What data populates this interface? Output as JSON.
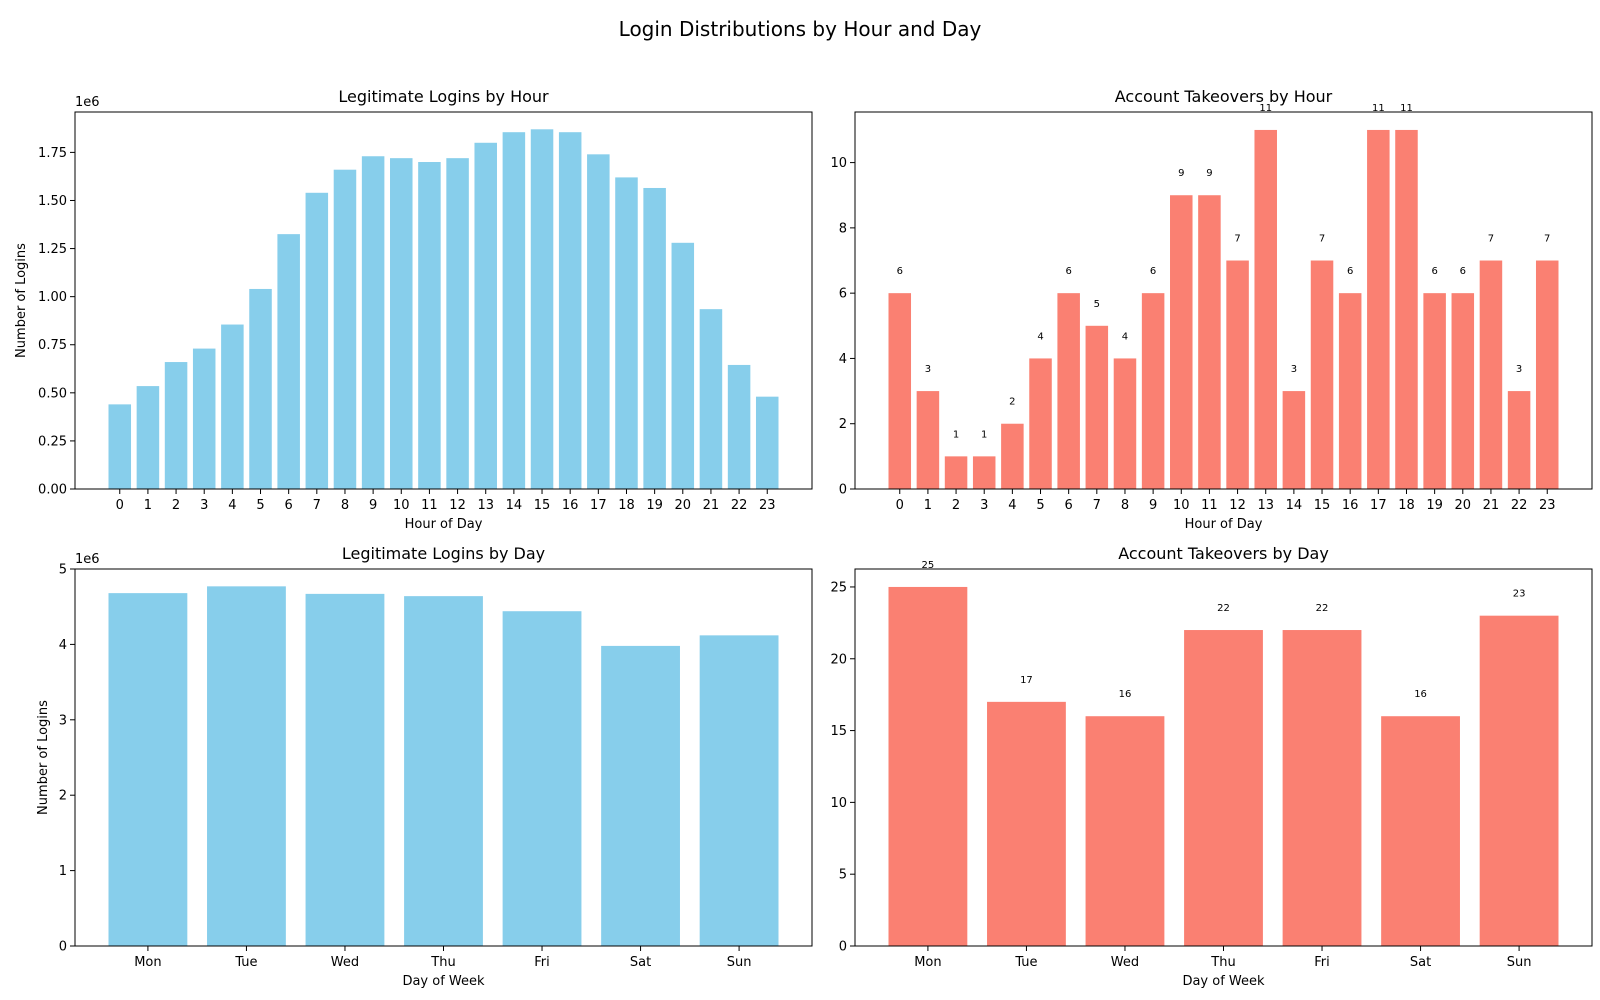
{
  "figure": {
    "title": "Login Distributions by Hour and Day"
  },
  "colors": {
    "legit": "#87ceeb",
    "takeover": "#fa8072"
  },
  "chart_data": [
    {
      "id": "legit-hour",
      "type": "bar",
      "title": "Legitimate Logins by Hour",
      "xlabel": "Hour of Day",
      "ylabel": "Number of Logins",
      "y_offset_label": "1e6",
      "ylim": [
        0,
        1.96
      ],
      "yticks": [
        0,
        0.25,
        0.5,
        0.75,
        1.0,
        1.25,
        1.5,
        1.75
      ],
      "ytick_labels": [
        "0.00",
        "0.25",
        "0.50",
        "0.75",
        "1.00",
        "1.25",
        "1.50",
        "1.75"
      ],
      "categories": [
        "0",
        "1",
        "2",
        "3",
        "4",
        "5",
        "6",
        "7",
        "8",
        "9",
        "10",
        "11",
        "12",
        "13",
        "14",
        "15",
        "16",
        "17",
        "18",
        "19",
        "20",
        "21",
        "22",
        "23"
      ],
      "values": [
        0.44,
        0.535,
        0.66,
        0.73,
        0.855,
        1.04,
        1.325,
        1.54,
        1.66,
        1.73,
        1.72,
        1.7,
        1.72,
        1.8,
        1.855,
        1.87,
        1.855,
        1.74,
        1.62,
        1.565,
        1.28,
        0.935,
        0.645,
        0.48
      ],
      "color_key": "legit",
      "grid": false,
      "show_data_labels": false
    },
    {
      "id": "takeover-hour",
      "type": "bar",
      "title": "Account Takeovers by Hour",
      "xlabel": "Hour of Day",
      "ylabel": "",
      "y_offset_label": "",
      "ylim": [
        0,
        11.55
      ],
      "yticks": [
        0,
        2,
        4,
        6,
        8,
        10
      ],
      "ytick_labels": [
        "0",
        "2",
        "4",
        "6",
        "8",
        "10"
      ],
      "categories": [
        "0",
        "1",
        "2",
        "3",
        "4",
        "5",
        "6",
        "7",
        "8",
        "9",
        "10",
        "11",
        "12",
        "13",
        "14",
        "15",
        "16",
        "17",
        "18",
        "19",
        "20",
        "21",
        "22",
        "23"
      ],
      "values": [
        6,
        3,
        1,
        1,
        2,
        4,
        6,
        5,
        4,
        6,
        9,
        9,
        7,
        11,
        3,
        7,
        6,
        11,
        11,
        6,
        6,
        7,
        3,
        7
      ],
      "color_key": "takeover",
      "grid": false,
      "show_data_labels": true
    },
    {
      "id": "legit-day",
      "type": "bar",
      "title": "Legitimate Logins by Day",
      "xlabel": "Day of Week",
      "ylabel": "Number of Logins",
      "y_offset_label": "1e6",
      "ylim": [
        0,
        5
      ],
      "yticks": [
        0,
        1,
        2,
        3,
        4,
        5
      ],
      "ytick_labels": [
        "0",
        "1",
        "2",
        "3",
        "4",
        "5"
      ],
      "categories": [
        "Mon",
        "Tue",
        "Wed",
        "Thu",
        "Fri",
        "Sat",
        "Sun"
      ],
      "values": [
        4.68,
        4.77,
        4.67,
        4.64,
        4.44,
        3.98,
        4.12
      ],
      "color_key": "legit",
      "grid": false,
      "show_data_labels": false
    },
    {
      "id": "takeover-day",
      "type": "bar",
      "title": "Account Takeovers by Day",
      "xlabel": "Day of Week",
      "ylabel": "",
      "y_offset_label": "",
      "ylim": [
        0,
        26.25
      ],
      "yticks": [
        0,
        5,
        10,
        15,
        20,
        25
      ],
      "ytick_labels": [
        "0",
        "5",
        "10",
        "15",
        "20",
        "25"
      ],
      "categories": [
        "Mon",
        "Tue",
        "Wed",
        "Thu",
        "Fri",
        "Sat",
        "Sun"
      ],
      "values": [
        25,
        17,
        16,
        22,
        22,
        16,
        23
      ],
      "color_key": "takeover",
      "grid": false,
      "show_data_labels": true
    }
  ]
}
